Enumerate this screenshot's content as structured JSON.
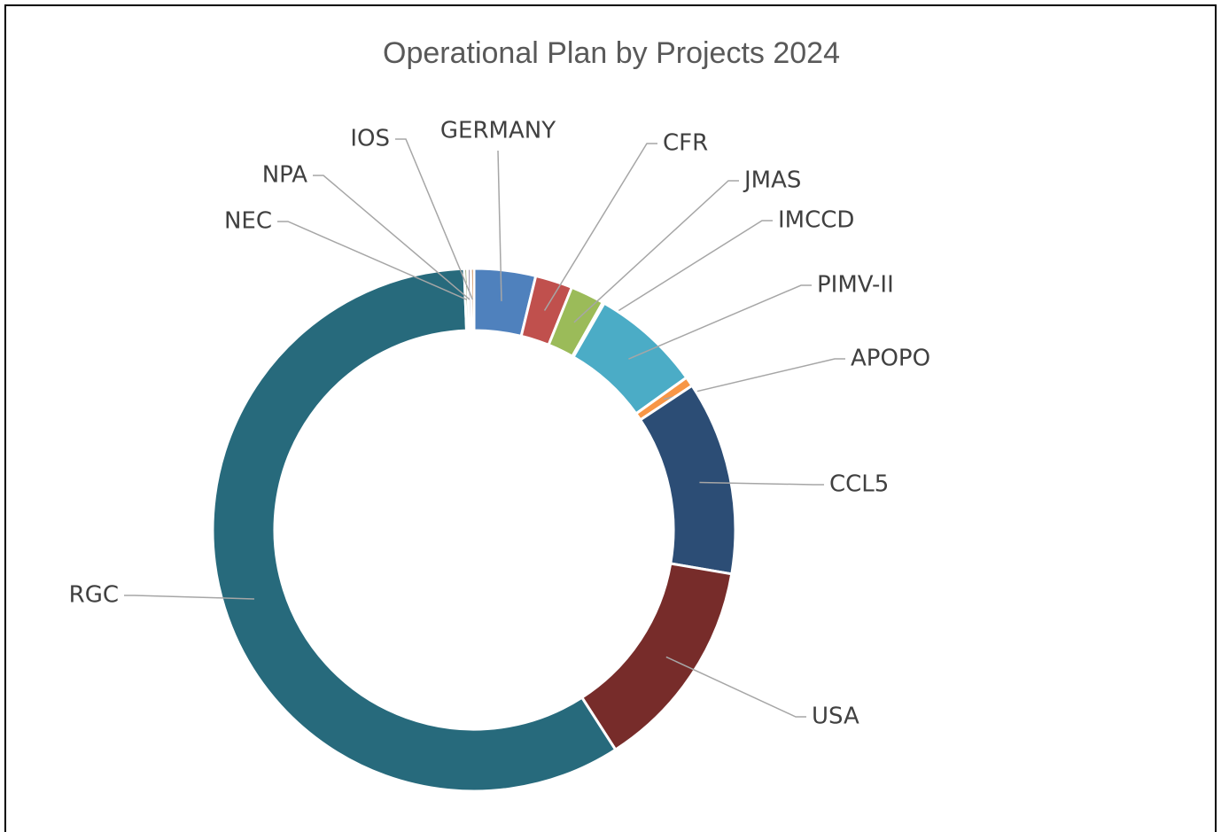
{
  "chart_data": {
    "type": "donut",
    "title": "Operational Plan by Projects 2024",
    "categories": [
      "GERMANY",
      "CFR",
      "JMAS",
      "IMCCD",
      "PIMV-II",
      "APOPO",
      "CCL5",
      "USA",
      "RGC",
      "NEC",
      "NPA",
      "IOS"
    ],
    "values": [
      3.8,
      2.3,
      2.1,
      0.1,
      6.8,
      0.6,
      12.0,
      13.2,
      58.5,
      0.2,
      0.2,
      0.2
    ],
    "colors": [
      "#4f81bd",
      "#c0504d",
      "#9bbb59",
      "#8064a2",
      "#4bacc6",
      "#f79646",
      "#2c4d75",
      "#772c2a",
      "#276a7c",
      "#5f7530",
      "#4d3b62",
      "#b65708"
    ]
  }
}
